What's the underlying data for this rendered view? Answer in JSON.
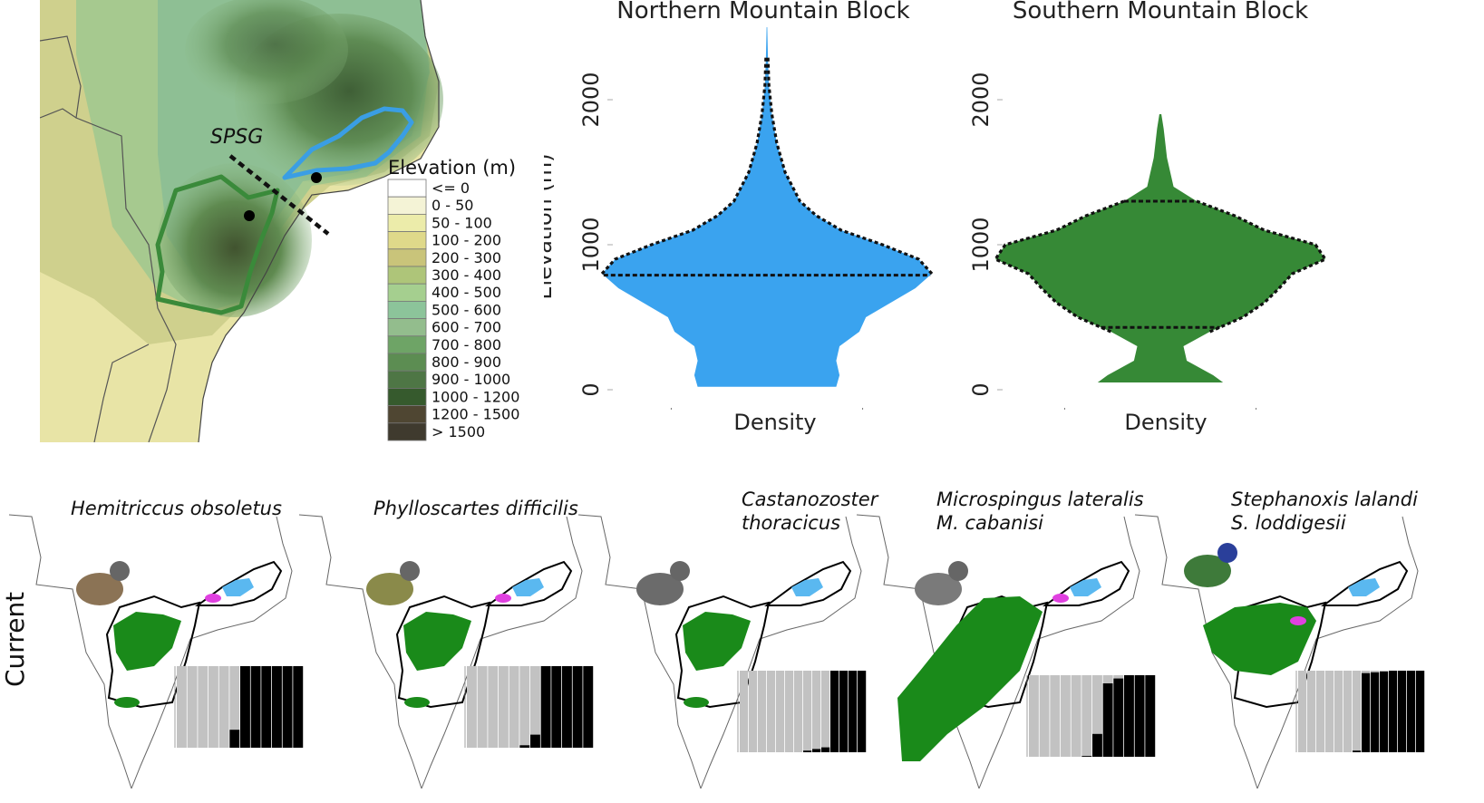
{
  "map": {
    "gap_label": "SPSG",
    "legend": {
      "title": "Elevation (m)",
      "classes": [
        {
          "label": "<= 0",
          "color": "#ffffff"
        },
        {
          "label": "0 - 50",
          "color": "#f4f3d6"
        },
        {
          "label": "50 - 100",
          "color": "#ececaa"
        },
        {
          "label": "100 - 200",
          "color": "#dfd98a"
        },
        {
          "label": "200 - 300",
          "color": "#c9c47a"
        },
        {
          "label": "300 - 400",
          "color": "#aec579"
        },
        {
          "label": "400 - 500",
          "color": "#a5cf8f"
        },
        {
          "label": "500 - 600",
          "color": "#8cc49a"
        },
        {
          "label": "600 - 700",
          "color": "#93bd8d"
        },
        {
          "label": "700 - 800",
          "color": "#6ea466"
        },
        {
          "label": "800 - 900",
          "color": "#5c8d52"
        },
        {
          "label": "900 - 1000",
          "color": "#4e7645"
        },
        {
          "label": "1000 - 1200",
          "color": "#365a2d"
        },
        {
          "label": "1200 - 1500",
          "color": "#4f4632"
        },
        {
          "label": "> 1500",
          "color": "#3f3a2e"
        }
      ]
    },
    "colors": {
      "northern_outline": "#3a9ee4",
      "southern_outline": "#3a8a3a"
    }
  },
  "chart_data": [
    {
      "type": "violin",
      "title": "Northern Mountain Block",
      "xlabel": "Density",
      "ylabel": "Elevation (m)",
      "ylim": [
        0,
        2500
      ],
      "yticks": [
        0,
        1000,
        2000
      ],
      "color": "#3aa3ef",
      "profile": [
        {
          "elevation": 20,
          "width": 0.42
        },
        {
          "elevation": 100,
          "width": 0.44
        },
        {
          "elevation": 200,
          "width": 0.42
        },
        {
          "elevation": 300,
          "width": 0.44
        },
        {
          "elevation": 400,
          "width": 0.56
        },
        {
          "elevation": 500,
          "width": 0.6
        },
        {
          "elevation": 600,
          "width": 0.75
        },
        {
          "elevation": 700,
          "width": 0.9
        },
        {
          "elevation": 800,
          "width": 1.0
        },
        {
          "elevation": 900,
          "width": 0.92
        },
        {
          "elevation": 1000,
          "width": 0.7
        },
        {
          "elevation": 1100,
          "width": 0.45
        },
        {
          "elevation": 1200,
          "width": 0.3
        },
        {
          "elevation": 1300,
          "width": 0.2
        },
        {
          "elevation": 1500,
          "width": 0.11
        },
        {
          "elevation": 1700,
          "width": 0.06
        },
        {
          "elevation": 1900,
          "width": 0.03
        },
        {
          "elevation": 2100,
          "width": 0.012
        },
        {
          "elevation": 2300,
          "width": 0.006
        },
        {
          "elevation": 2500,
          "width": 0.002
        }
      ],
      "dashed_outline_range": [
        780,
        2300
      ],
      "median_line": 790
    },
    {
      "type": "violin",
      "title": "Southern Mountain Block",
      "xlabel": "Density",
      "ylabel": "",
      "ylim": [
        0,
        2500
      ],
      "yticks": [
        0,
        1000,
        2000
      ],
      "color": "#368936",
      "profile": [
        {
          "elevation": 50,
          "width": 0.38
        },
        {
          "elevation": 100,
          "width": 0.32
        },
        {
          "elevation": 200,
          "width": 0.16
        },
        {
          "elevation": 300,
          "width": 0.14
        },
        {
          "elevation": 400,
          "width": 0.3
        },
        {
          "elevation": 500,
          "width": 0.5
        },
        {
          "elevation": 600,
          "width": 0.63
        },
        {
          "elevation": 700,
          "width": 0.72
        },
        {
          "elevation": 800,
          "width": 0.8
        },
        {
          "elevation": 900,
          "width": 1.0
        },
        {
          "elevation": 1000,
          "width": 0.94
        },
        {
          "elevation": 1100,
          "width": 0.63
        },
        {
          "elevation": 1200,
          "width": 0.45
        },
        {
          "elevation": 1300,
          "width": 0.22
        },
        {
          "elevation": 1400,
          "width": 0.08
        },
        {
          "elevation": 1600,
          "width": 0.04
        },
        {
          "elevation": 1800,
          "width": 0.02
        },
        {
          "elevation": 1900,
          "width": 0.006
        }
      ],
      "dashed_outline_range": [
        430,
        1300
      ],
      "quartile_lines": [
        430,
        1300
      ]
    }
  ],
  "bottom": {
    "row_label": "Current",
    "panels": [
      {
        "species_line1": "Hemitriccus obsoletus",
        "species_line2": "",
        "bird": "small-brown-flycatcher",
        "bars": [
          1,
          1,
          1,
          1,
          1,
          0.22,
          1,
          1,
          1,
          1,
          1,
          1
        ]
      },
      {
        "species_line1": "Phylloscartes difficilis",
        "species_line2": "",
        "bird": "olive-tyrannulet",
        "bars": [
          1,
          1,
          1,
          1,
          1,
          0.03,
          0.16,
          1,
          1,
          1,
          1,
          1
        ]
      },
      {
        "species_line1": "Castanozoster",
        "species_line2": "thoracicus",
        "bird": "grey-chestnut-warbler",
        "bars": [
          1,
          1,
          1,
          1,
          1,
          1,
          1,
          0.02,
          0.04,
          0.06,
          1,
          1,
          1,
          1
        ]
      },
      {
        "species_line1": "Microspingus lateralis",
        "species_line2": "M. cabanisi",
        "bird": "grey-headed-warbling-finch",
        "bars": [
          1,
          1,
          1,
          1,
          1,
          0.01,
          0.28,
          0.9,
          0.96,
          1,
          1,
          1
        ]
      },
      {
        "species_line1": "Stephanoxis lalandi",
        "species_line2": "S. loddigesii",
        "bird": "plovercrest-hummingbird",
        "bars": [
          1,
          1,
          1,
          1,
          1,
          1,
          0.02,
          0.97,
          0.98,
          0.99,
          1,
          1,
          1,
          1
        ]
      }
    ],
    "colors": {
      "southern_range": "#1a8a1a",
      "northern_range": "#5ab8f0",
      "hybrid": "#e040e0",
      "bar_grey": "#c2c2c2",
      "bar_black": "#000000"
    }
  }
}
